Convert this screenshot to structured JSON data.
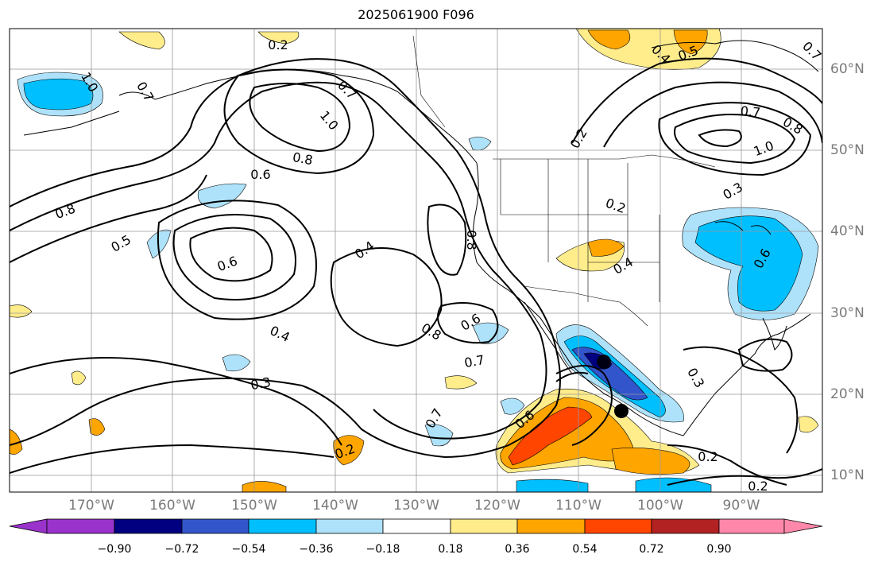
{
  "title": "2025061900 F096",
  "longitude_labels": [
    "170°W",
    "160°W",
    "150°W",
    "140°W",
    "130°W",
    "120°W",
    "110°W",
    "100°W",
    "90°W"
  ],
  "latitude_labels": [
    "60°N",
    "50°N",
    "40°N",
    "30°N",
    "20°N",
    "10°N"
  ],
  "colorbar": {
    "ticks": [
      "−0.90",
      "−0.72",
      "−0.54",
      "−0.36",
      "−0.18",
      "0.18",
      "0.36",
      "0.54",
      "0.72",
      "0.90"
    ],
    "colors": [
      "#9933cc",
      "#000080",
      "#3355cc",
      "#00bfff",
      "#aee2fa",
      "#ffffff",
      "#ffec8b",
      "#ffa500",
      "#ff4500",
      "#b22222",
      "#ff88aa"
    ]
  },
  "contour_labels": [
    "0.2",
    "1.0",
    "0.7",
    "0.7",
    "1.0",
    "0.8",
    "0.6",
    "0.8",
    "0.5",
    "0.6",
    "0.4",
    "0.8",
    "0.4",
    "0.3",
    "0.2",
    "0.7",
    "0.6",
    "0.8",
    "0.6",
    "0.7",
    "0.4",
    "0.5",
    "0.7",
    "0.8",
    "1.0",
    "0.2",
    "0.3",
    "0.2",
    "0.4",
    "0.3",
    "0.2",
    "0.2",
    "0.6",
    "0.7"
  ],
  "markers": {
    "storm_center": "black-dot"
  }
}
